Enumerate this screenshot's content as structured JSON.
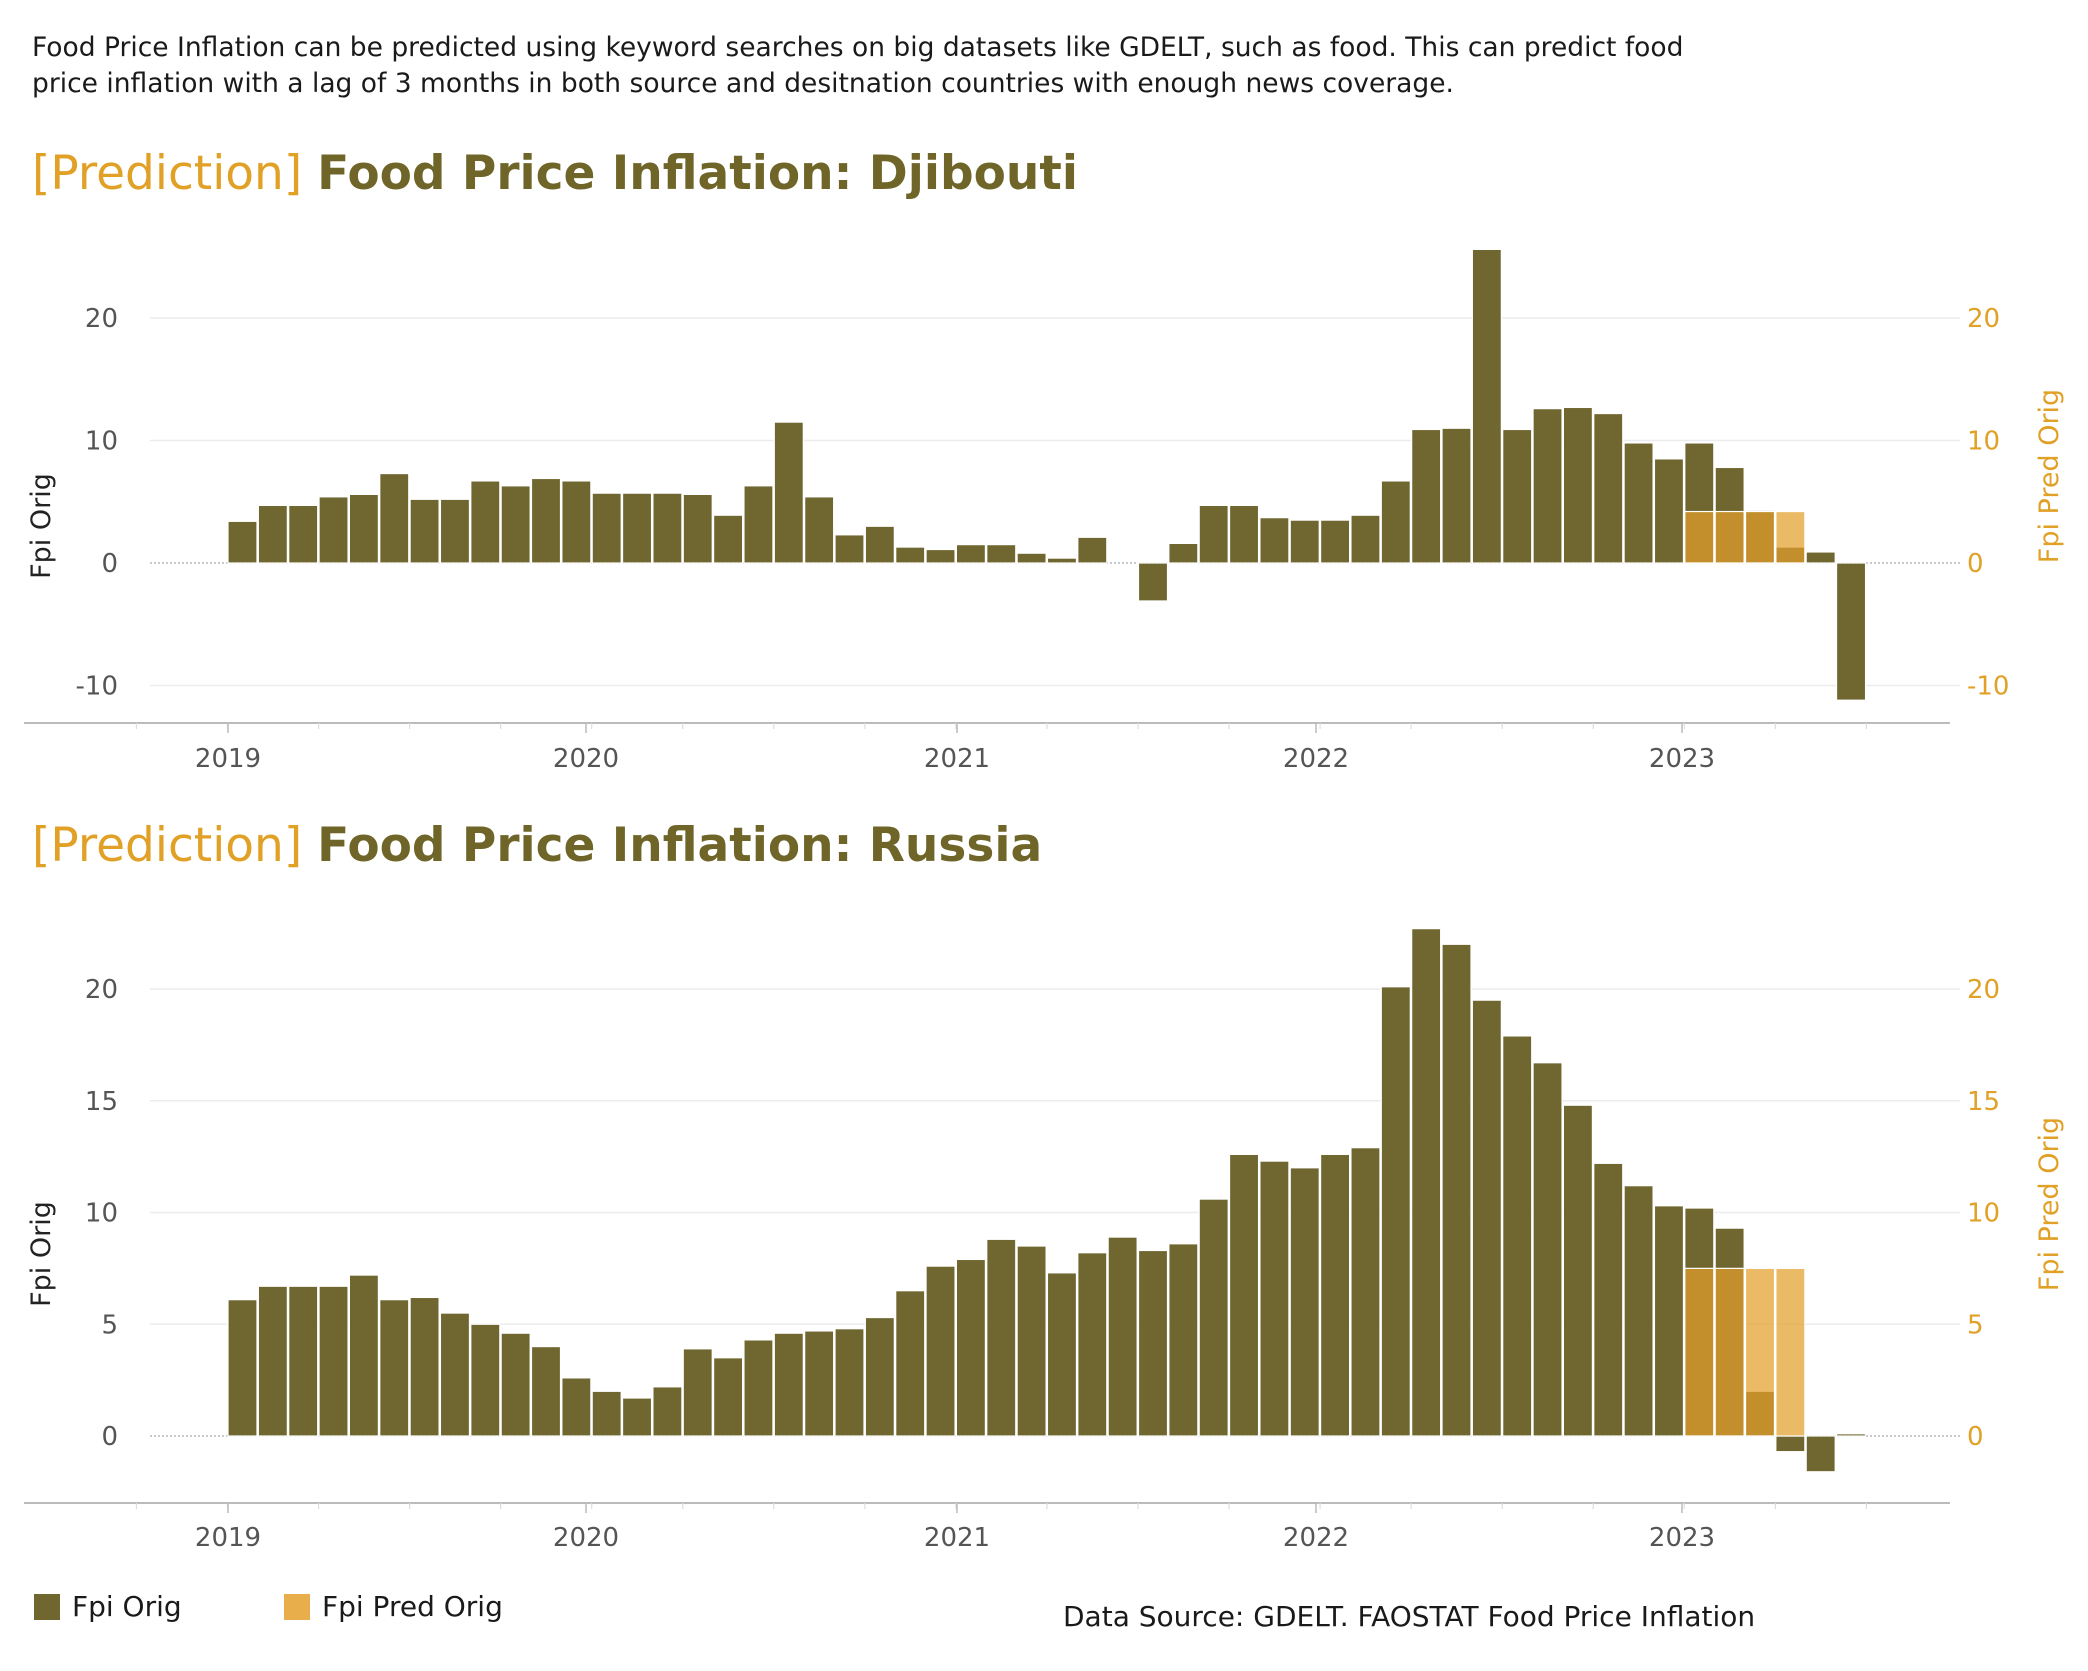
{
  "intro_text": "Food Price Inflation can be predicted using keyword searches on big datasets like GDELT, such as food. This can predict food price inflation with a lag of 3 months in both source and desitnation countries with enough news coverage.",
  "colors": {
    "orig": "#6f6630",
    "pred": "#e3a02b",
    "pred_light": "#efc26e",
    "title_pred": "#e0a126",
    "title_main": "#6f6528"
  },
  "legend": {
    "orig_label": "Fpi Orig",
    "pred_label": "Fpi Pred Orig"
  },
  "source": "Data Source: GDELT. FAOSTAT Food Price Inflation",
  "chart_data": [
    {
      "type": "bar",
      "title_prefix": "[Prediction]",
      "title": "Food Price Inflation: Djibouti",
      "ylabel": "Fpi Orig",
      "ylabel_right": "Fpi Pred Orig",
      "yticks": [
        -10,
        0,
        10,
        20
      ],
      "ytick_labels": [
        "-10",
        "0",
        "10",
        "20"
      ],
      "xtick_labels": [
        "2019",
        "2020",
        "2021",
        "2022",
        "2023"
      ],
      "ylim": [
        -13,
        28
      ],
      "grid": true,
      "x_start": "2019-01",
      "series": [
        {
          "name": "Fpi Orig",
          "values": [
            3.4,
            4.7,
            4.7,
            5.4,
            5.6,
            7.3,
            5.2,
            5.2,
            6.7,
            6.3,
            6.9,
            6.7,
            5.7,
            5.7,
            5.7,
            5.6,
            3.9,
            6.3,
            11.5,
            5.4,
            2.3,
            3.0,
            1.3,
            1.1,
            1.5,
            1.5,
            0.8,
            0.4,
            2.1,
            0.0,
            -3.1,
            1.6,
            4.7,
            4.7,
            3.7,
            3.5,
            3.5,
            3.9,
            6.7,
            10.9,
            11.0,
            25.6,
            10.9,
            12.6,
            12.7,
            12.2,
            9.8,
            8.5,
            9.8,
            7.8,
            4.3,
            1.3,
            0.9,
            -11.2
          ]
        },
        {
          "name": "Fpi Pred Orig",
          "start": "2023-01",
          "values": [
            4.2,
            4.2,
            4.2,
            4.2
          ]
        }
      ]
    },
    {
      "type": "bar",
      "title_prefix": "[Prediction]",
      "title": "Food Price Inflation: Russia",
      "ylabel": "Fpi Orig",
      "ylabel_right": "Fpi Pred Orig",
      "yticks": [
        0,
        5,
        10,
        15,
        20
      ],
      "ytick_labels": [
        "0",
        "5",
        "10",
        "15",
        "20"
      ],
      "xtick_labels": [
        "2019",
        "2020",
        "2021",
        "2022",
        "2023"
      ],
      "ylim": [
        -3,
        23.5
      ],
      "grid": true,
      "x_start": "2019-01",
      "series": [
        {
          "name": "Fpi Orig",
          "values": [
            6.1,
            6.7,
            6.7,
            6.7,
            7.2,
            6.1,
            6.2,
            5.5,
            5.0,
            4.6,
            4.0,
            2.6,
            2.0,
            1.7,
            2.2,
            3.9,
            3.5,
            4.3,
            4.6,
            4.7,
            4.8,
            5.3,
            6.5,
            7.6,
            7.9,
            8.8,
            8.5,
            7.3,
            8.2,
            8.9,
            8.3,
            8.6,
            10.6,
            12.6,
            12.3,
            12.0,
            12.6,
            12.9,
            20.1,
            22.7,
            22.0,
            19.5,
            17.9,
            16.7,
            14.8,
            12.2,
            11.2,
            10.3,
            10.2,
            9.3,
            2.0,
            -0.7,
            -1.6,
            0.1
          ]
        },
        {
          "name": "Fpi Pred Orig",
          "start": "2023-01",
          "values": [
            7.5,
            7.5,
            7.5,
            7.5
          ]
        }
      ]
    }
  ]
}
